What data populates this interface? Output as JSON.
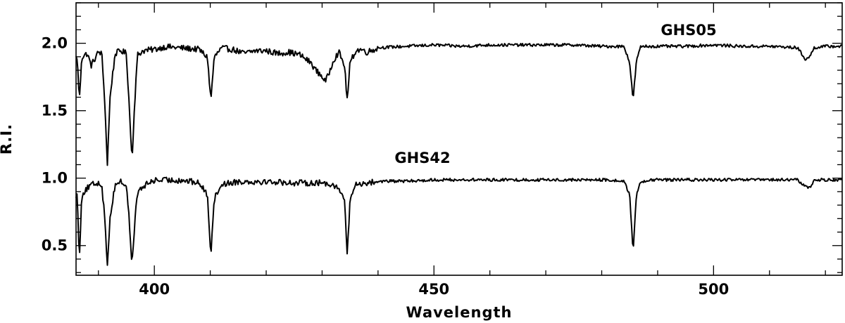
{
  "chart_data": {
    "type": "line",
    "title": "",
    "xlabel": "Wavelength",
    "ylabel": "R.I.",
    "xlim": [
      386,
      523
    ],
    "ylim": [
      0.28,
      2.3
    ],
    "x_major_ticks": [
      400,
      450,
      500
    ],
    "x_minor_step": 10,
    "y_major_ticks": [
      0.5,
      1.0,
      1.5,
      2.0
    ],
    "y_tick_labels": [
      "0.5",
      "1.0",
      "1.5",
      "2.0"
    ],
    "y_minor_step": 0.1,
    "grid": false,
    "legend": "none",
    "series": [
      {
        "name": "GHS05",
        "baseline": 1.98,
        "x": [
          386.2,
          386.6,
          387.0,
          388.0,
          388.7,
          390.0,
          390.6,
          391.1,
          391.6,
          392.1,
          393.0,
          394.0,
          395.0,
          395.5,
          396.0,
          396.5,
          397.0,
          398.0,
          400.0,
          402.0,
          405.0,
          408.0,
          409.5,
          410.1,
          410.7,
          412.0,
          414.0,
          416.0,
          418.0,
          420.0,
          422.0,
          424.0,
          426.0,
          428.0,
          429.0,
          430.0,
          430.6,
          431.2,
          432.0,
          433.0,
          434.0,
          434.5,
          435.0,
          436.0,
          437.0,
          438.0,
          440.0,
          445.0,
          450.0,
          455.0,
          460.0,
          465.0,
          470.0,
          475.0,
          480.0,
          484.0,
          485.0,
          485.6,
          486.2,
          487.0,
          490.0,
          495.0,
          500.0,
          505.0,
          510.0,
          515.0,
          516.5,
          517.3,
          518.0,
          520.0,
          523.0
        ],
        "y": [
          1.9,
          1.58,
          1.9,
          1.93,
          1.84,
          1.94,
          1.93,
          1.6,
          1.11,
          1.62,
          1.93,
          1.95,
          1.93,
          1.55,
          1.14,
          1.58,
          1.92,
          1.95,
          1.96,
          1.98,
          1.97,
          1.96,
          1.9,
          1.58,
          1.9,
          1.97,
          1.96,
          1.93,
          1.95,
          1.95,
          1.93,
          1.94,
          1.92,
          1.86,
          1.8,
          1.76,
          1.72,
          1.78,
          1.88,
          1.94,
          1.84,
          1.58,
          1.86,
          1.95,
          1.96,
          1.94,
          1.97,
          1.98,
          1.99,
          1.98,
          1.99,
          1.99,
          1.99,
          1.99,
          1.98,
          1.98,
          1.86,
          1.58,
          1.87,
          1.98,
          1.98,
          1.98,
          1.99,
          1.98,
          1.98,
          1.97,
          1.88,
          1.91,
          1.97,
          1.98,
          1.98
        ]
      },
      {
        "name": "GHS42",
        "baseline": 0.98,
        "x": [
          386.2,
          386.6,
          387.0,
          388.0,
          389.0,
          390.0,
          390.6,
          391.1,
          391.6,
          392.1,
          393.0,
          394.0,
          395.0,
          395.5,
          396.0,
          396.5,
          397.0,
          398.0,
          399.0,
          400.0,
          402.0,
          405.0,
          408.0,
          409.5,
          410.1,
          410.7,
          412.0,
          415.0,
          420.0,
          425.0,
          430.0,
          432.0,
          433.0,
          434.0,
          434.5,
          435.0,
          436.0,
          438.0,
          440.0,
          445.0,
          450.0,
          455.0,
          460.0,
          465.0,
          470.0,
          475.0,
          480.0,
          484.0,
          485.0,
          485.6,
          486.2,
          487.0,
          490.0,
          495.0,
          500.0,
          505.0,
          510.0,
          515.0,
          516.5,
          517.3,
          518.0,
          520.0,
          523.0
        ],
        "y": [
          0.88,
          0.4,
          0.88,
          0.93,
          0.96,
          0.97,
          0.96,
          0.72,
          0.37,
          0.72,
          0.96,
          0.98,
          0.95,
          0.7,
          0.36,
          0.68,
          0.9,
          0.94,
          0.97,
          0.99,
          0.99,
          0.99,
          0.97,
          0.88,
          0.44,
          0.85,
          0.96,
          0.98,
          0.98,
          0.97,
          0.97,
          0.96,
          0.92,
          0.85,
          0.43,
          0.85,
          0.96,
          0.97,
          0.98,
          0.98,
          0.99,
          0.99,
          0.99,
          0.99,
          0.99,
          0.99,
          0.99,
          0.98,
          0.88,
          0.45,
          0.88,
          0.98,
          0.99,
          0.99,
          0.99,
          0.99,
          0.99,
          0.99,
          0.94,
          0.93,
          0.99,
          0.99,
          0.99
        ]
      }
    ]
  }
}
